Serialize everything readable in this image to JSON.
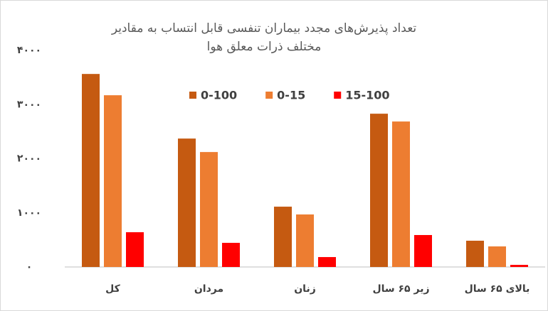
{
  "chart_data": {
    "type": "bar",
    "title": "تعداد پذیرش‌های مجدد بیماران تنفسی قابل انتساب به مقادیر مختلف ذرات معلق هوا",
    "categories": [
      "کل",
      "مردان",
      "زنان",
      "زیر ۶۵ سال",
      "بالای ۶۵ سال"
    ],
    "series": [
      {
        "name": "0-100",
        "color": "#c55a11",
        "values": [
          3565,
          2372,
          1114,
          2831,
          485
        ]
      },
      {
        "name": "0-15",
        "color": "#ed7d31",
        "values": [
          3172,
          2123,
          970,
          2687,
          380
        ]
      },
      {
        "name": "15-100",
        "color": "#ff0000",
        "values": [
          642,
          446,
          183,
          590,
          39
        ]
      }
    ],
    "ylim": [
      0,
      4000
    ],
    "yticks": [
      {
        "value": 0,
        "label": "۰"
      },
      {
        "value": 1000,
        "label": "۱۰۰۰"
      },
      {
        "value": 2000,
        "label": "۲۰۰۰"
      },
      {
        "value": 3000,
        "label": "۳۰۰۰"
      },
      {
        "value": 4000,
        "label": "۴۰۰۰"
      }
    ],
    "grid": false,
    "legend": "top"
  }
}
